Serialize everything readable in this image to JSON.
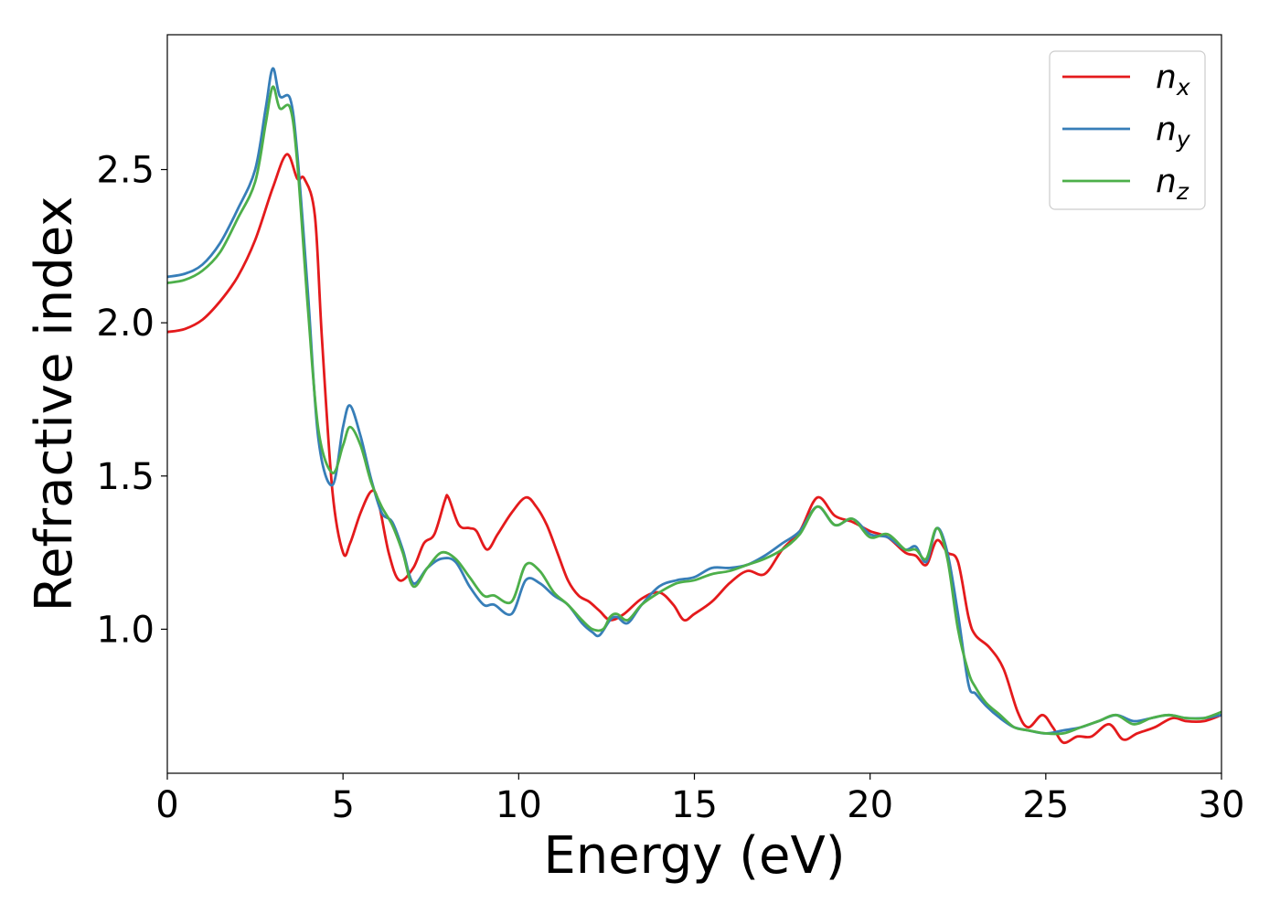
{
  "chart_data": {
    "type": "line",
    "xlabel": "Energy (eV)",
    "ylabel": "Refractive index",
    "xlim": [
      0,
      30
    ],
    "ylim": [
      0.53,
      2.94
    ],
    "x_ticks": [
      "0",
      "5",
      "10",
      "15",
      "20",
      "25",
      "30"
    ],
    "y_ticks": [
      "1.0",
      "1.5",
      "2.0",
      "2.5"
    ],
    "grid": false,
    "legend_position": "top-right",
    "series": [
      {
        "name": "n_x",
        "legend_main": "n",
        "legend_sub": "x",
        "color": "#e41a1c",
        "x": [
          0,
          0.5,
          1,
          1.5,
          2,
          2.5,
          3,
          3.4,
          3.7,
          3.9,
          4.2,
          4.4,
          4.7,
          5.0,
          5.2,
          5.5,
          5.8,
          6.0,
          6.3,
          6.6,
          7.0,
          7.3,
          7.6,
          7.9,
          8.0,
          8.3,
          8.6,
          8.8,
          9.1,
          9.4,
          9.8,
          10.2,
          10.5,
          10.8,
          11.1,
          11.4,
          11.7,
          12.0,
          12.3,
          12.6,
          13.0,
          13.5,
          14.0,
          14.4,
          14.7,
          15.0,
          15.5,
          16.0,
          16.5,
          17.0,
          17.5,
          18.0,
          18.5,
          19.0,
          19.5,
          20.0,
          20.5,
          21.0,
          21.3,
          21.6,
          21.9,
          22.2,
          22.5,
          22.8,
          23.0,
          23.4,
          23.8,
          24.2,
          24.5,
          24.9,
          25.2,
          25.5,
          25.9,
          26.3,
          26.8,
          27.2,
          27.6,
          28.1,
          28.6,
          29.0,
          29.5,
          30.0
        ],
        "values": [
          1.97,
          1.98,
          2.01,
          2.07,
          2.15,
          2.27,
          2.44,
          2.55,
          2.47,
          2.47,
          2.35,
          1.95,
          1.45,
          1.25,
          1.28,
          1.38,
          1.45,
          1.42,
          1.25,
          1.16,
          1.2,
          1.28,
          1.31,
          1.42,
          1.43,
          1.34,
          1.33,
          1.32,
          1.26,
          1.31,
          1.38,
          1.43,
          1.4,
          1.34,
          1.25,
          1.16,
          1.11,
          1.09,
          1.06,
          1.03,
          1.05,
          1.1,
          1.12,
          1.08,
          1.03,
          1.05,
          1.09,
          1.15,
          1.19,
          1.18,
          1.26,
          1.32,
          1.43,
          1.37,
          1.35,
          1.32,
          1.3,
          1.25,
          1.24,
          1.21,
          1.29,
          1.25,
          1.22,
          1.04,
          0.98,
          0.94,
          0.87,
          0.73,
          0.68,
          0.72,
          0.68,
          0.63,
          0.65,
          0.65,
          0.69,
          0.64,
          0.66,
          0.68,
          0.71,
          0.7,
          0.7,
          0.72
        ]
      },
      {
        "name": "n_y",
        "legend_main": "n",
        "legend_sub": "y",
        "color": "#377eb8",
        "x": [
          0,
          0.5,
          1,
          1.5,
          2,
          2.5,
          2.8,
          3.0,
          3.2,
          3.5,
          3.7,
          4.0,
          4.3,
          4.7,
          5.0,
          5.2,
          5.5,
          5.8,
          6.1,
          6.4,
          6.7,
          7.0,
          7.4,
          7.8,
          8.2,
          8.6,
          9.0,
          9.3,
          9.8,
          10.2,
          10.6,
          11.0,
          11.4,
          11.8,
          12.1,
          12.3,
          12.6,
          12.8,
          13.1,
          13.5,
          14.0,
          14.5,
          15.0,
          15.5,
          16.0,
          16.5,
          17.0,
          17.5,
          18.0,
          18.5,
          19.0,
          19.5,
          20.0,
          20.5,
          21.0,
          21.3,
          21.6,
          21.9,
          22.2,
          22.5,
          22.8,
          23.0,
          23.3,
          23.7,
          24.1,
          24.5,
          25.0,
          25.5,
          26.0,
          26.5,
          27.0,
          27.5,
          28.0,
          28.5,
          29.0,
          29.5,
          30.0
        ],
        "values": [
          2.15,
          2.16,
          2.19,
          2.26,
          2.37,
          2.5,
          2.7,
          2.83,
          2.74,
          2.73,
          2.55,
          2.1,
          1.62,
          1.47,
          1.66,
          1.73,
          1.63,
          1.49,
          1.38,
          1.35,
          1.26,
          1.15,
          1.2,
          1.23,
          1.22,
          1.14,
          1.08,
          1.08,
          1.05,
          1.16,
          1.15,
          1.11,
          1.08,
          1.02,
          0.99,
          0.98,
          1.03,
          1.04,
          1.02,
          1.08,
          1.14,
          1.16,
          1.17,
          1.2,
          1.2,
          1.21,
          1.24,
          1.28,
          1.32,
          1.4,
          1.34,
          1.36,
          1.31,
          1.3,
          1.26,
          1.27,
          1.22,
          1.33,
          1.25,
          1.05,
          0.82,
          0.79,
          0.75,
          0.71,
          0.68,
          0.67,
          0.66,
          0.67,
          0.68,
          0.7,
          0.72,
          0.7,
          0.71,
          0.72,
          0.71,
          0.71,
          0.72
        ]
      },
      {
        "name": "n_z",
        "legend_main": "n",
        "legend_sub": "z",
        "color": "#4daf4a",
        "x": [
          0,
          0.5,
          1,
          1.5,
          2,
          2.5,
          2.8,
          3.0,
          3.2,
          3.5,
          3.7,
          4.0,
          4.3,
          4.7,
          5.0,
          5.2,
          5.5,
          5.8,
          6.1,
          6.4,
          6.7,
          7.0,
          7.4,
          7.8,
          8.2,
          8.6,
          9.0,
          9.3,
          9.8,
          10.2,
          10.6,
          11.0,
          11.4,
          11.8,
          12.1,
          12.4,
          12.6,
          12.8,
          13.1,
          13.5,
          14.0,
          14.5,
          15.0,
          15.5,
          16.0,
          16.5,
          17.0,
          17.5,
          18.0,
          18.5,
          19.0,
          19.5,
          20.0,
          20.5,
          21.0,
          21.3,
          21.6,
          21.9,
          22.2,
          22.5,
          22.8,
          23.0,
          23.3,
          23.7,
          24.1,
          24.5,
          25.0,
          25.5,
          26.0,
          26.5,
          27.0,
          27.5,
          28.0,
          28.5,
          29.0,
          29.5,
          30.0
        ],
        "values": [
          2.13,
          2.14,
          2.17,
          2.23,
          2.34,
          2.46,
          2.65,
          2.77,
          2.7,
          2.7,
          2.52,
          2.05,
          1.65,
          1.51,
          1.6,
          1.66,
          1.6,
          1.48,
          1.4,
          1.34,
          1.25,
          1.14,
          1.2,
          1.25,
          1.23,
          1.17,
          1.11,
          1.11,
          1.09,
          1.21,
          1.19,
          1.12,
          1.08,
          1.03,
          1.0,
          1.0,
          1.04,
          1.05,
          1.03,
          1.08,
          1.12,
          1.15,
          1.16,
          1.18,
          1.19,
          1.21,
          1.23,
          1.26,
          1.31,
          1.4,
          1.34,
          1.36,
          1.3,
          1.31,
          1.26,
          1.26,
          1.23,
          1.33,
          1.23,
          1.0,
          0.86,
          0.81,
          0.76,
          0.72,
          0.68,
          0.67,
          0.66,
          0.66,
          0.68,
          0.7,
          0.72,
          0.69,
          0.71,
          0.72,
          0.71,
          0.71,
          0.73
        ]
      }
    ]
  }
}
